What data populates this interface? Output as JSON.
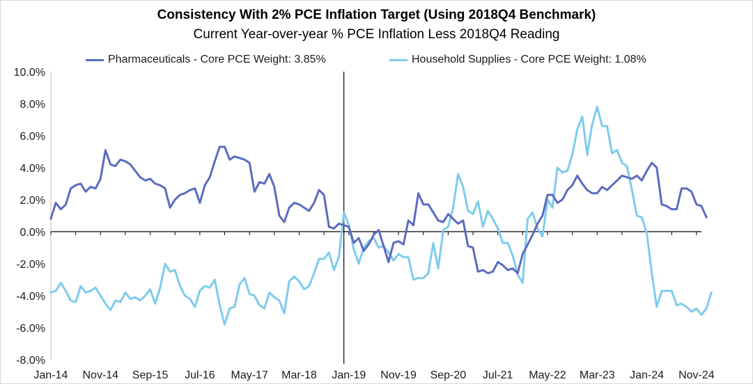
{
  "chart_data": {
    "type": "line",
    "title": "Consistency With 2% PCE Inflation Target (Using 2018Q4 Benchmark)",
    "subtitle": "Current Year-over-year % PCE Inflation Less 2018Q4 Reading",
    "ylim": [
      -8,
      10
    ],
    "yticks": [
      -8,
      -6,
      -4,
      -2,
      0,
      2,
      4,
      6,
      8,
      10
    ],
    "ytick_labels": [
      "-8.0%",
      "-6.0%",
      "-4.0%",
      "-2.0%",
      "0.0%",
      "2.0%",
      "4.0%",
      "6.0%",
      "8.0%",
      "10.0%"
    ],
    "xlim": [
      0,
      131
    ],
    "xticks": [
      0,
      10,
      20,
      30,
      40,
      50,
      60,
      70,
      80,
      90,
      100,
      110,
      120,
      130
    ],
    "xtick_labels": [
      "Jan-14",
      "Nov-14",
      "Sep-15",
      "Jul-16",
      "May-17",
      "Mar-18",
      "Jan-19",
      "Nov-19",
      "Sep-20",
      "Jul-21",
      "May-22",
      "Mar-23",
      "Jan-24",
      "Nov-24"
    ],
    "reference_line_x": 59,
    "x_start": "Jan-14",
    "x_end": "Nov-24",
    "series": [
      {
        "name": "Pharmaceuticals - Core PCE Weight: 3.85%",
        "color": "#5b6bbf",
        "values": [
          0.8,
          1.8,
          1.4,
          1.7,
          2.7,
          2.9,
          3.0,
          2.5,
          2.8,
          2.7,
          3.3,
          5.1,
          4.2,
          4.1,
          4.5,
          4.4,
          4.2,
          3.8,
          3.4,
          3.2,
          3.3,
          3.0,
          2.9,
          2.7,
          1.5,
          2.0,
          2.3,
          2.4,
          2.6,
          2.7,
          1.8,
          2.9,
          3.4,
          4.4,
          5.3,
          5.3,
          4.5,
          4.7,
          4.6,
          4.5,
          4.3,
          2.5,
          3.1,
          3.0,
          3.6,
          2.8,
          1.0,
          0.6,
          1.5,
          1.8,
          1.7,
          1.5,
          1.3,
          1.8,
          2.6,
          2.3,
          0.3,
          0.2,
          0.5,
          0.4,
          0.3,
          -0.7,
          -0.4,
          -1.2,
          -0.8,
          -0.2,
          0.1,
          -0.9,
          -1.9,
          -0.7,
          -0.6,
          -0.8,
          0.7,
          0.4,
          2.4,
          1.7,
          1.7,
          1.2,
          0.7,
          0.6,
          1.1,
          0.8,
          0.5,
          0.7,
          -0.9,
          -1.0,
          -2.5,
          -2.4,
          -2.6,
          -2.5,
          -1.9,
          -2.1,
          -2.4,
          -2.3,
          -2.6,
          -1.4,
          -0.8,
          -0.2,
          0.5,
          1.0,
          2.3,
          2.3,
          1.8,
          2.0,
          2.6,
          2.9,
          3.5,
          3.0,
          2.6,
          2.4,
          2.4,
          2.8,
          2.6,
          2.9,
          3.2,
          3.5,
          3.4,
          3.3,
          3.5,
          3.2,
          3.8,
          4.3,
          4.0,
          1.7,
          1.6,
          1.4,
          1.4,
          2.7,
          2.7,
          2.5,
          1.7,
          1.6,
          0.9
        ]
      },
      {
        "name": "Household Supplies - Core PCE Weight: 1.08%",
        "color": "#7ecbed",
        "values": [
          -3.8,
          -3.7,
          -3.2,
          -3.7,
          -4.3,
          -4.4,
          -3.4,
          -3.8,
          -3.7,
          -3.5,
          -4.0,
          -4.5,
          -4.9,
          -4.3,
          -4.4,
          -3.8,
          -4.2,
          -4.1,
          -4.3,
          -4.0,
          -3.6,
          -4.5,
          -3.5,
          -2.0,
          -2.5,
          -2.4,
          -3.4,
          -4.0,
          -4.2,
          -4.7,
          -3.7,
          -3.4,
          -3.5,
          -3.0,
          -4.6,
          -5.8,
          -4.8,
          -4.7,
          -3.3,
          -2.9,
          -3.9,
          -4.0,
          -4.6,
          -4.8,
          -3.8,
          -4.1,
          -4.3,
          -5.1,
          -3.1,
          -2.8,
          -3.1,
          -3.6,
          -3.4,
          -2.6,
          -1.7,
          -1.7,
          -1.3,
          -2.4,
          -1.6,
          1.2,
          0.4,
          -1.1,
          -2.0,
          -1.0,
          -0.6,
          -0.4,
          -1.0,
          -0.9,
          -1.3,
          -1.8,
          -1.4,
          -1.6,
          -1.6,
          -3.0,
          -2.9,
          -2.9,
          -2.6,
          -0.7,
          -2.3,
          0.1,
          0.3,
          1.5,
          3.6,
          2.8,
          1.3,
          1.1,
          1.9,
          0.3,
          1.3,
          0.8,
          0.2,
          -0.7,
          -0.7,
          -1.5,
          -2.7,
          -3.2,
          0.8,
          1.2,
          0.2,
          -0.3,
          2.0,
          1.5,
          4.0,
          3.7,
          3.8,
          4.8,
          6.4,
          7.2,
          4.8,
          6.7,
          7.8,
          6.6,
          6.6,
          4.9,
          5.1,
          4.3,
          4.1,
          2.6,
          1.0,
          0.9,
          -0.1,
          -2.6,
          -4.7,
          -3.7,
          -3.7,
          -3.7,
          -4.6,
          -4.5,
          -4.7,
          -5.0,
          -4.8,
          -5.2,
          -4.8,
          -3.8
        ]
      }
    ]
  }
}
